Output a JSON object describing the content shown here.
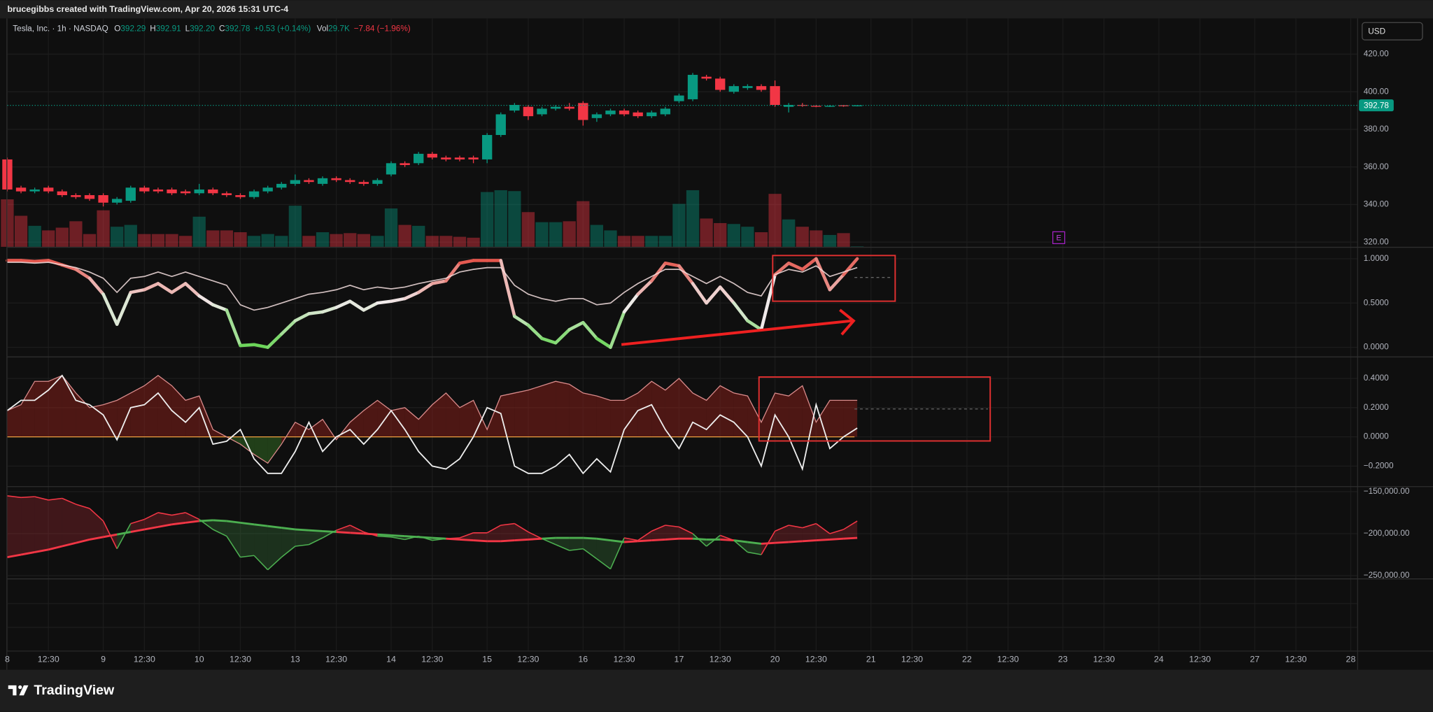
{
  "header": {
    "attribution": "brucegibbs created with TradingView.com, Apr 20, 2026 15:31 UTC-4"
  },
  "legend": {
    "symbol": "Tesla, Inc. · 1h · NASDAQ",
    "open_label": "O",
    "high_label": "H",
    "low_label": "L",
    "low": "392.20",
    "close_label": "C",
    "change": "+0.53 (+0.14%)",
    "volume_label": "Vol",
    "volume": "29.7K",
    "volume_change": "−7.84 (−1.96%)"
  },
  "price_axis": {
    "currency": "USD"
  },
  "events": [
    "E"
  ],
  "footer": {
    "brand": "TradingView"
  },
  "time_axis": [
    "8",
    "12:30",
    "9",
    "12:30",
    "10",
    "12:30",
    "13",
    "12:30",
    "14",
    "12:30",
    "15",
    "12:30",
    "16",
    "12:30",
    "17",
    "12:30",
    "20",
    "12:30",
    "21",
    "12:30",
    "22",
    "12:30",
    "23",
    "12:30",
    "24",
    "12:30",
    "27",
    "12:30",
    "28"
  ],
  "chart_data": [
    {
      "type": "candlestick",
      "up_color": "#089981",
      "down_color": "#f23645",
      "open": [
        364,
        349,
        347,
        349,
        347,
        345,
        345,
        345,
        341,
        342,
        349,
        348,
        348,
        347,
        346,
        348,
        346,
        345,
        344,
        347,
        349,
        351,
        353,
        351,
        354,
        353,
        352,
        351,
        356,
        362,
        362,
        367,
        365,
        365,
        365,
        364,
        377,
        390,
        392,
        388,
        391,
        392,
        394,
        386,
        388,
        390,
        389,
        387,
        388,
        395,
        396,
        408,
        407,
        400,
        402,
        403,
        403,
        392,
        393,
        392.5,
        392,
        392.8,
        392.29
      ],
      "high": [
        365,
        350,
        349,
        350,
        348,
        346,
        346,
        346,
        344,
        350,
        350,
        349,
        349,
        348,
        351,
        349,
        347,
        346,
        348,
        350,
        352,
        356,
        354,
        355,
        355,
        354,
        353,
        354,
        363,
        363,
        368,
        368,
        366,
        366,
        366,
        378,
        389,
        394,
        393,
        392,
        393,
        394,
        395,
        389,
        391,
        391,
        390,
        390,
        392,
        399,
        410,
        409,
        408,
        404,
        404,
        404,
        406,
        394,
        394,
        393,
        393,
        393,
        392.91
      ],
      "low": [
        347,
        346,
        346,
        346,
        344,
        343,
        342,
        339,
        340,
        341,
        346,
        346,
        345,
        345,
        345,
        345,
        344,
        343,
        343,
        346,
        348,
        350,
        351,
        350,
        352,
        351,
        350,
        350,
        355,
        360,
        361,
        364,
        363,
        363,
        362,
        362,
        376,
        389,
        385,
        387,
        390,
        390,
        382,
        384,
        387,
        387,
        386,
        386,
        387,
        394,
        395,
        406,
        400,
        399,
        401,
        400,
        392,
        389,
        392,
        391.8,
        391.9,
        392,
        392.2
      ],
      "close": [
        348,
        347,
        348,
        347,
        345,
        344,
        343,
        341,
        343,
        349,
        347,
        347,
        346,
        346,
        348,
        346,
        345,
        344,
        347,
        349,
        351,
        353,
        352,
        354,
        353,
        352,
        351,
        353,
        362,
        361,
        367,
        365,
        364,
        364,
        364,
        377,
        388,
        393,
        387,
        391,
        392,
        391,
        385,
        388,
        390,
        388,
        387,
        389,
        391,
        398,
        409,
        407,
        401,
        403,
        403,
        401,
        393,
        393,
        392.5,
        392,
        392.5,
        392.3,
        392.78
      ],
      "volume": [
        2912000,
        1904000,
        1288000,
        1008000,
        1176000,
        1568000,
        784000,
        2240000,
        1232000,
        1344000,
        784000,
        784000,
        784000,
        672000,
        1848000,
        1008000,
        1008000,
        896000,
        672000,
        784000,
        672000,
        2520000,
        672000,
        896000,
        784000,
        840000,
        784000,
        672000,
        2352000,
        1344000,
        1288000,
        672000,
        672000,
        616000,
        560000,
        3360000,
        3472000,
        3416000,
        2128000,
        1512000,
        1512000,
        1568000,
        2800000,
        1344000,
        1008000,
        672000,
        672000,
        672000,
        672000,
        2632000,
        3472000,
        1736000,
        1456000,
        1400000,
        1232000,
        896000,
        3248000,
        1680000,
        1232000,
        1008000,
        728000,
        840000,
        29700
      ],
      "ylim": [
        317.5,
        439
      ],
      "yticks": [
        {
          "value": 320,
          "label": "320.00"
        },
        {
          "value": 340,
          "label": "340.00"
        },
        {
          "value": 360,
          "label": "360.00"
        },
        {
          "value": 380,
          "label": "380.00"
        },
        {
          "value": 400,
          "label": "400.00"
        },
        {
          "value": 420,
          "label": "420.00"
        }
      ]
    },
    {
      "type": "line",
      "series": [
        {
          "gradient": [
            "#4cd137",
            "#f0eaea",
            "#e0281c"
          ],
          "values": [
            0.98,
            0.98,
            0.97,
            0.98,
            0.93,
            0.88,
            0.78,
            0.6,
            0.26,
            0.62,
            0.65,
            0.72,
            0.62,
            0.72,
            0.58,
            0.48,
            0.42,
            0.02,
            0.03,
            0.0,
            0.15,
            0.3,
            0.38,
            0.4,
            0.45,
            0.52,
            0.42,
            0.5,
            0.52,
            0.55,
            0.62,
            0.72,
            0.75,
            0.95,
            0.98,
            0.98,
            0.98,
            0.35,
            0.25,
            0.1,
            0.05,
            0.2,
            0.28,
            0.1,
            0.0,
            0.4,
            0.6,
            0.75,
            0.95,
            0.92,
            0.72,
            0.5,
            0.68,
            0.5,
            0.3,
            0.2,
            0.82,
            0.95,
            0.88,
            1.0,
            0.65,
            0.82,
            1.0
          ]
        },
        {
          "color": "#f3dede",
          "values": [
            0.96,
            0.96,
            0.95,
            0.96,
            0.93,
            0.9,
            0.85,
            0.78,
            0.62,
            0.78,
            0.8,
            0.85,
            0.8,
            0.85,
            0.8,
            0.75,
            0.7,
            0.48,
            0.42,
            0.45,
            0.5,
            0.55,
            0.6,
            0.62,
            0.65,
            0.7,
            0.65,
            0.68,
            0.66,
            0.68,
            0.72,
            0.75,
            0.78,
            0.85,
            0.88,
            0.9,
            0.9,
            0.7,
            0.6,
            0.55,
            0.52,
            0.55,
            0.55,
            0.48,
            0.5,
            0.62,
            0.72,
            0.8,
            0.88,
            0.88,
            0.8,
            0.72,
            0.8,
            0.72,
            0.62,
            0.58,
            0.82,
            0.88,
            0.85,
            0.92,
            0.8,
            0.85,
            0.9
          ]
        }
      ],
      "ylim": [
        -0.103,
        1.124
      ],
      "yticks": [
        {
          "value": 0,
          "label": "0.0000"
        },
        {
          "value": 0.5,
          "label": "0.5000"
        },
        {
          "value": 1,
          "label": "1.0000"
        }
      ]
    },
    {
      "type": "area",
      "up_color": "#b3261e",
      "down_color": "#3f8f2a",
      "zero_color": "#f0a040",
      "series": [
        {
          "color": "#d98a8a",
          "values": [
            0.18,
            0.22,
            0.38,
            0.38,
            0.42,
            0.3,
            0.2,
            0.22,
            0.25,
            0.3,
            0.35,
            0.42,
            0.35,
            0.25,
            0.28,
            0.05,
            0.0,
            -0.05,
            -0.12,
            -0.18,
            -0.05,
            0.1,
            0.05,
            0.12,
            -0.02,
            0.1,
            0.18,
            0.25,
            0.18,
            0.2,
            0.12,
            0.22,
            0.3,
            0.2,
            0.25,
            0.05,
            0.28,
            0.3,
            0.32,
            0.35,
            0.38,
            0.36,
            0.3,
            0.28,
            0.25,
            0.25,
            0.3,
            0.38,
            0.32,
            0.4,
            0.3,
            0.25,
            0.35,
            0.3,
            0.28,
            0.1,
            0.3,
            0.28,
            0.35,
            0.1,
            0.25,
            0.25,
            0.25
          ]
        },
        {
          "color": "#eeeeee",
          "values": [
            0.18,
            0.25,
            0.25,
            0.32,
            0.42,
            0.25,
            0.22,
            0.15,
            -0.02,
            0.2,
            0.22,
            0.3,
            0.18,
            0.1,
            0.2,
            -0.05,
            -0.03,
            0.05,
            -0.15,
            -0.25,
            -0.25,
            -0.1,
            0.1,
            -0.1,
            0.0,
            0.05,
            -0.05,
            0.05,
            0.18,
            0.05,
            -0.1,
            -0.2,
            -0.22,
            -0.15,
            0.0,
            0.2,
            0.16,
            -0.2,
            -0.25,
            -0.25,
            -0.2,
            -0.12,
            -0.25,
            -0.15,
            -0.24,
            0.05,
            0.18,
            0.22,
            0.05,
            -0.08,
            0.1,
            0.05,
            0.15,
            0.1,
            0.0,
            -0.2,
            0.15,
            0.0,
            -0.22,
            0.22,
            -0.08,
            0.0,
            0.06
          ]
        }
      ],
      "ylim": [
        -0.3375,
        0.544
      ],
      "yticks": [
        {
          "value": -0.2,
          "label": "−0.2000"
        },
        {
          "value": 0,
          "label": "0.0000"
        },
        {
          "value": 0.2,
          "label": "0.2000"
        },
        {
          "value": 0.4,
          "label": "0.4000"
        }
      ]
    },
    {
      "type": "cloud",
      "up_color": "#f23645",
      "down_color": "#4caf50",
      "series": [
        {
          "values": [
            -155000,
            -157000,
            -156000,
            -160000,
            -158000,
            -165000,
            -170000,
            -185000,
            -218000,
            -188000,
            -183000,
            -175000,
            -178000,
            -175000,
            -183000,
            -195000,
            -203000,
            -228000,
            -226000,
            -243000,
            -228000,
            -215000,
            -213000,
            -205000,
            -196000,
            -190000,
            -198000,
            -203000,
            -204000,
            -207000,
            -203000,
            -208000,
            -206000,
            -205000,
            -199000,
            -199000,
            -190000,
            -188000,
            -198000,
            -206000,
            -213000,
            -220000,
            -218000,
            -230000,
            -242000,
            -205000,
            -208000,
            -197000,
            -190000,
            -192000,
            -200000,
            -215000,
            -202000,
            -208000,
            -222000,
            -225000,
            -197000,
            -190000,
            -193000,
            -188000,
            -200000,
            -195000,
            -185000
          ]
        },
        {
          "values": [
            -228000,
            -225000,
            -222000,
            -219000,
            -215000,
            -211000,
            -207000,
            -204000,
            -201000,
            -198000,
            -195000,
            -192000,
            -189000,
            -187000,
            -185000,
            -184000,
            -185000,
            -187000,
            -189000,
            -191000,
            -193000,
            -195000,
            -196000,
            -197000,
            -198000,
            -199000,
            -200000,
            -201000,
            -202000,
            -203000,
            -204000,
            -205000,
            -206000,
            -207000,
            -208000,
            -209000,
            -209000,
            -208000,
            -207000,
            -206000,
            -205000,
            -205000,
            -205000,
            -206000,
            -208000,
            -210000,
            -209000,
            -208000,
            -207000,
            -206000,
            -206000,
            -207000,
            -207000,
            -208000,
            -210000,
            -212000,
            -211000,
            -210000,
            -209000,
            -208000,
            -207000,
            -206000,
            -205000
          ]
        }
      ],
      "ylim": [
        -253300,
        -144600
      ],
      "yticks": [
        {
          "value": -250000,
          "label": "−250,000.00"
        },
        {
          "value": -200000,
          "label": "−200,000.00"
        },
        {
          "value": -150000,
          "label": "−150,000.00"
        }
      ]
    }
  ]
}
